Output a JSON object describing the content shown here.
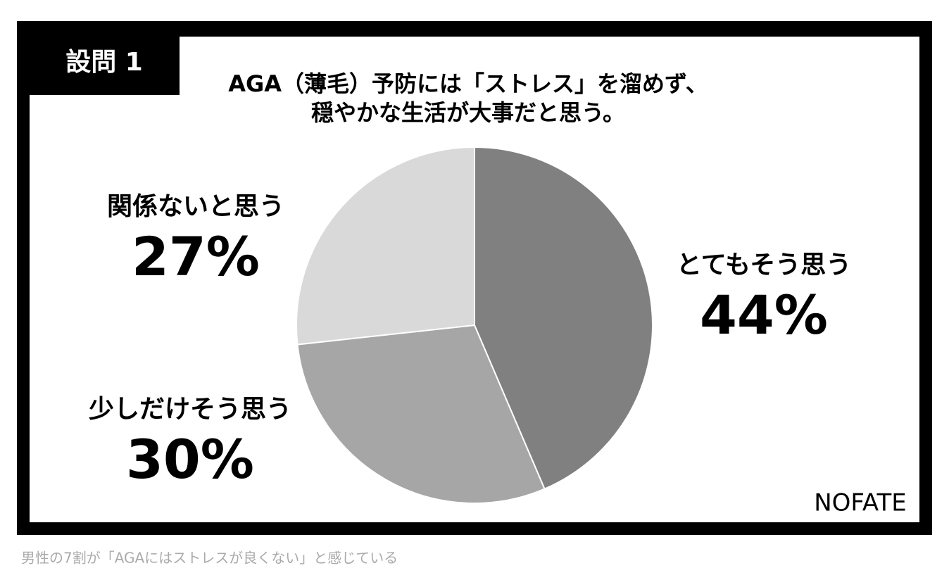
{
  "chart_data": {
    "type": "pie",
    "badge": "設問 1",
    "title": [
      "AGA（薄毛）予防には「ストレス」を溜めず、",
      "穏やかな生活が大事だと思う。"
    ],
    "categories": [
      "とてもそう思う",
      "少しだけそう思う",
      "関係ないと思う"
    ],
    "values": [
      44,
      30,
      27
    ],
    "value_labels": [
      "44%",
      "30%",
      "27%"
    ],
    "colors": [
      "#808080",
      "#a6a6a6",
      "#d9d9d9"
    ],
    "logo": "NOFATE",
    "caption": "男性の7割が「AGAにはストレスが良くない」と感じている"
  }
}
